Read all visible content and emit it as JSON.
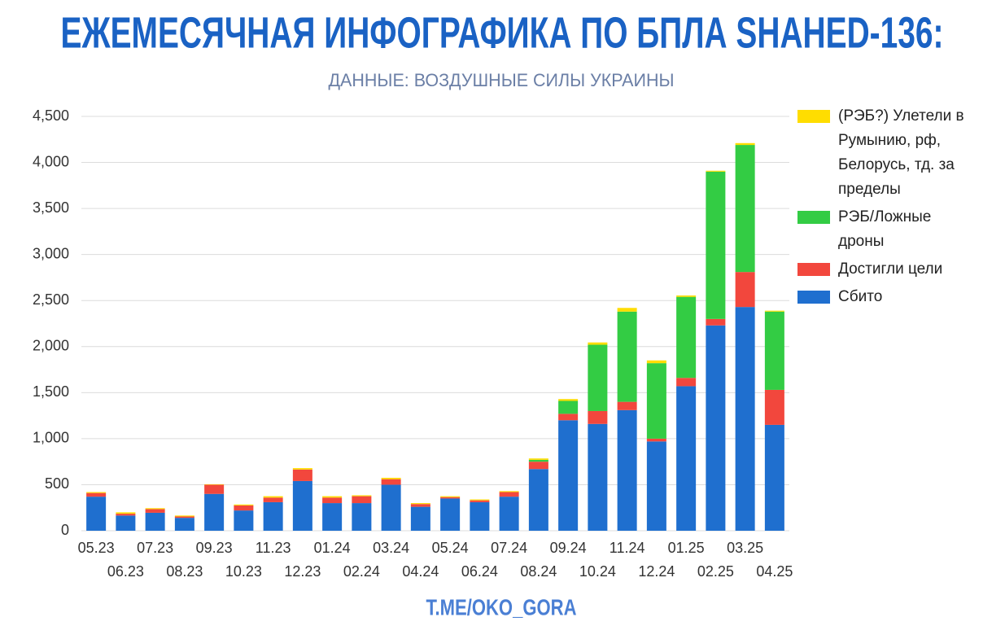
{
  "chart_data": {
    "type": "bar",
    "stacked": true,
    "title": "ЕЖЕМЕСЯЧНАЯ ИНФОГРАФИКА ПО БПЛА SHAHED-136:",
    "subtitle": "ДАННЫЕ: ВОЗДУШНЫЕ СИЛЫ УКРАИНЫ",
    "footer": "T.ME/OKO_GORA",
    "categories": [
      "05.23",
      "06.23",
      "07.23",
      "08.23",
      "09.23",
      "10.23",
      "11.23",
      "12.23",
      "01.24",
      "02.24",
      "03.24",
      "04.24",
      "05.24",
      "06.24",
      "07.24",
      "08.24",
      "09.24",
      "10.24",
      "11.24",
      "12.24",
      "01.25",
      "02.25",
      "03.25",
      "04.25"
    ],
    "series": [
      {
        "name": "Сбито",
        "color": "#1f6fcf",
        "values": [
          370,
          165,
          195,
          140,
          400,
          220,
          310,
          540,
          300,
          300,
          500,
          260,
          350,
          310,
          370,
          670,
          1200,
          1160,
          1310,
          970,
          1570,
          2230,
          2430,
          1150
        ]
      },
      {
        "name": "Достигли цели",
        "color": "#f2473d",
        "values": [
          40,
          20,
          40,
          15,
          100,
          55,
          50,
          125,
          60,
          75,
          60,
          30,
          15,
          20,
          50,
          80,
          70,
          140,
          90,
          30,
          90,
          70,
          380,
          380
        ]
      },
      {
        "name": "РЭБ/Ложные дроны",
        "color": "#33cc44",
        "values": [
          0,
          0,
          0,
          0,
          0,
          0,
          0,
          0,
          0,
          0,
          0,
          0,
          0,
          0,
          0,
          20,
          140,
          720,
          980,
          820,
          880,
          1600,
          1380,
          850
        ]
      },
      {
        "name": "(РЭБ?) Улетели в Румынию, рф, Белорусь, тд. за пределы",
        "color": "#ffdd00",
        "values": [
          10,
          15,
          10,
          10,
          5,
          10,
          15,
          15,
          15,
          10,
          15,
          10,
          10,
          10,
          10,
          15,
          20,
          25,
          40,
          30,
          15,
          10,
          20,
          10
        ]
      }
    ],
    "ylim": [
      0,
      4500
    ],
    "yticks": [
      0,
      {
        "value": 500,
        "label": "500"
      },
      {
        "value": 1000,
        "label": "1,000"
      },
      {
        "value": 1500,
        "label": "1,500"
      },
      {
        "value": 2000,
        "label": "2,000"
      },
      {
        "value": 2500,
        "label": "2,500"
      },
      {
        "value": 3000,
        "label": "3,000"
      },
      {
        "value": 3500,
        "label": "3,500"
      },
      {
        "value": 4000,
        "label": "4,000"
      },
      {
        "value": 4500,
        "label": "4,500"
      }
    ],
    "grid": true
  }
}
